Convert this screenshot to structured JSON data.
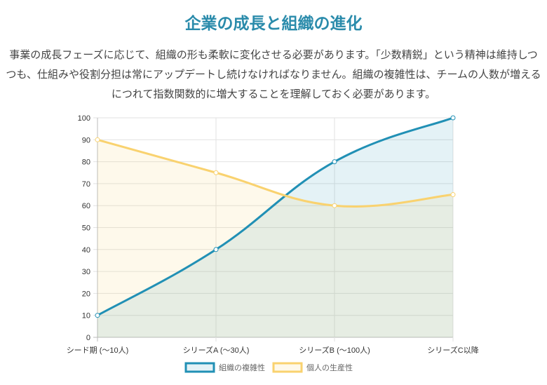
{
  "title": "企業の成長と組織の進化",
  "description": "事業の成長フェーズに応じて、組織の形も柔軟に変化させる必要があります。「少数精鋭」という精神は維持しつつも、仕組みや役割分担は常にアップデートし続けなければなりません。組織の複雑性は、チームの人数が増えるにつれて指数関数的に増大することを理解しておく必要があります。",
  "chart_data": {
    "type": "line",
    "categories": [
      "シード期 (〜10人)",
      "シリーズA (〜30人)",
      "シリーズB (〜100人)",
      "シリーズC以降"
    ],
    "ylim": [
      0,
      100
    ],
    "yticks": [
      0,
      10,
      20,
      30,
      40,
      50,
      60,
      70,
      80,
      90,
      100
    ],
    "grid": true,
    "legend_position": "bottom",
    "series": [
      {
        "name": "組織の複雑性",
        "values": [
          10,
          40,
          80,
          100
        ],
        "color": "#2190b5",
        "fill": "rgba(33,144,181,0.12)"
      },
      {
        "name": "個人の生産性",
        "values": [
          90,
          75,
          60,
          65
        ],
        "color": "#f9d26f",
        "fill": "rgba(249,210,111,0.14)"
      }
    ]
  }
}
